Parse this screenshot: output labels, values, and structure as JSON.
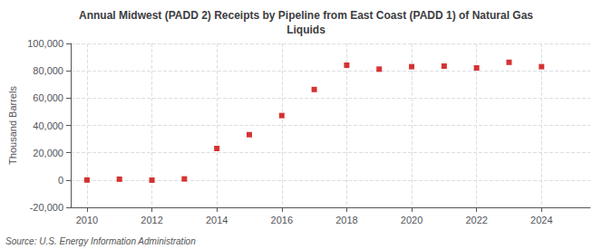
{
  "chart_data": {
    "type": "scatter",
    "title": "Annual Midwest (PADD 2) Receipts by Pipeline from East Coast (PADD 1) of Natural Gas\nLiquids",
    "ylabel": "Thousand Barrels",
    "annotations": [
      "Source: U.S. Energy Information Administration"
    ],
    "x": [
      2010,
      2011,
      2012,
      2013,
      2014,
      2015,
      2016,
      2017,
      2018,
      2019,
      2020,
      2021,
      2022,
      2023,
      2024
    ],
    "values": [
      27,
      620,
      -85,
      810,
      23100,
      33200,
      47200,
      66300,
      84100,
      81200,
      83000,
      83400,
      82100,
      86200,
      83000
    ],
    "color": "#cc0000",
    "marker": "square",
    "xlim": [
      2009.5,
      2025.5
    ],
    "xticks": [
      2010,
      2012,
      2014,
      2016,
      2018,
      2020,
      2022,
      2024
    ],
    "ylim": [
      -20000,
      100000
    ],
    "yticks": [
      {
        "value": -20000,
        "label": "-20,000"
      },
      0,
      {
        "value": 20000,
        "label": "20,000"
      },
      {
        "value": 40000,
        "label": "40,000"
      },
      {
        "value": 60000,
        "label": "60,000"
      },
      {
        "value": 80000,
        "label": "80,000"
      },
      {
        "value": 100000,
        "label": "100,000"
      }
    ],
    "grid": true
  }
}
